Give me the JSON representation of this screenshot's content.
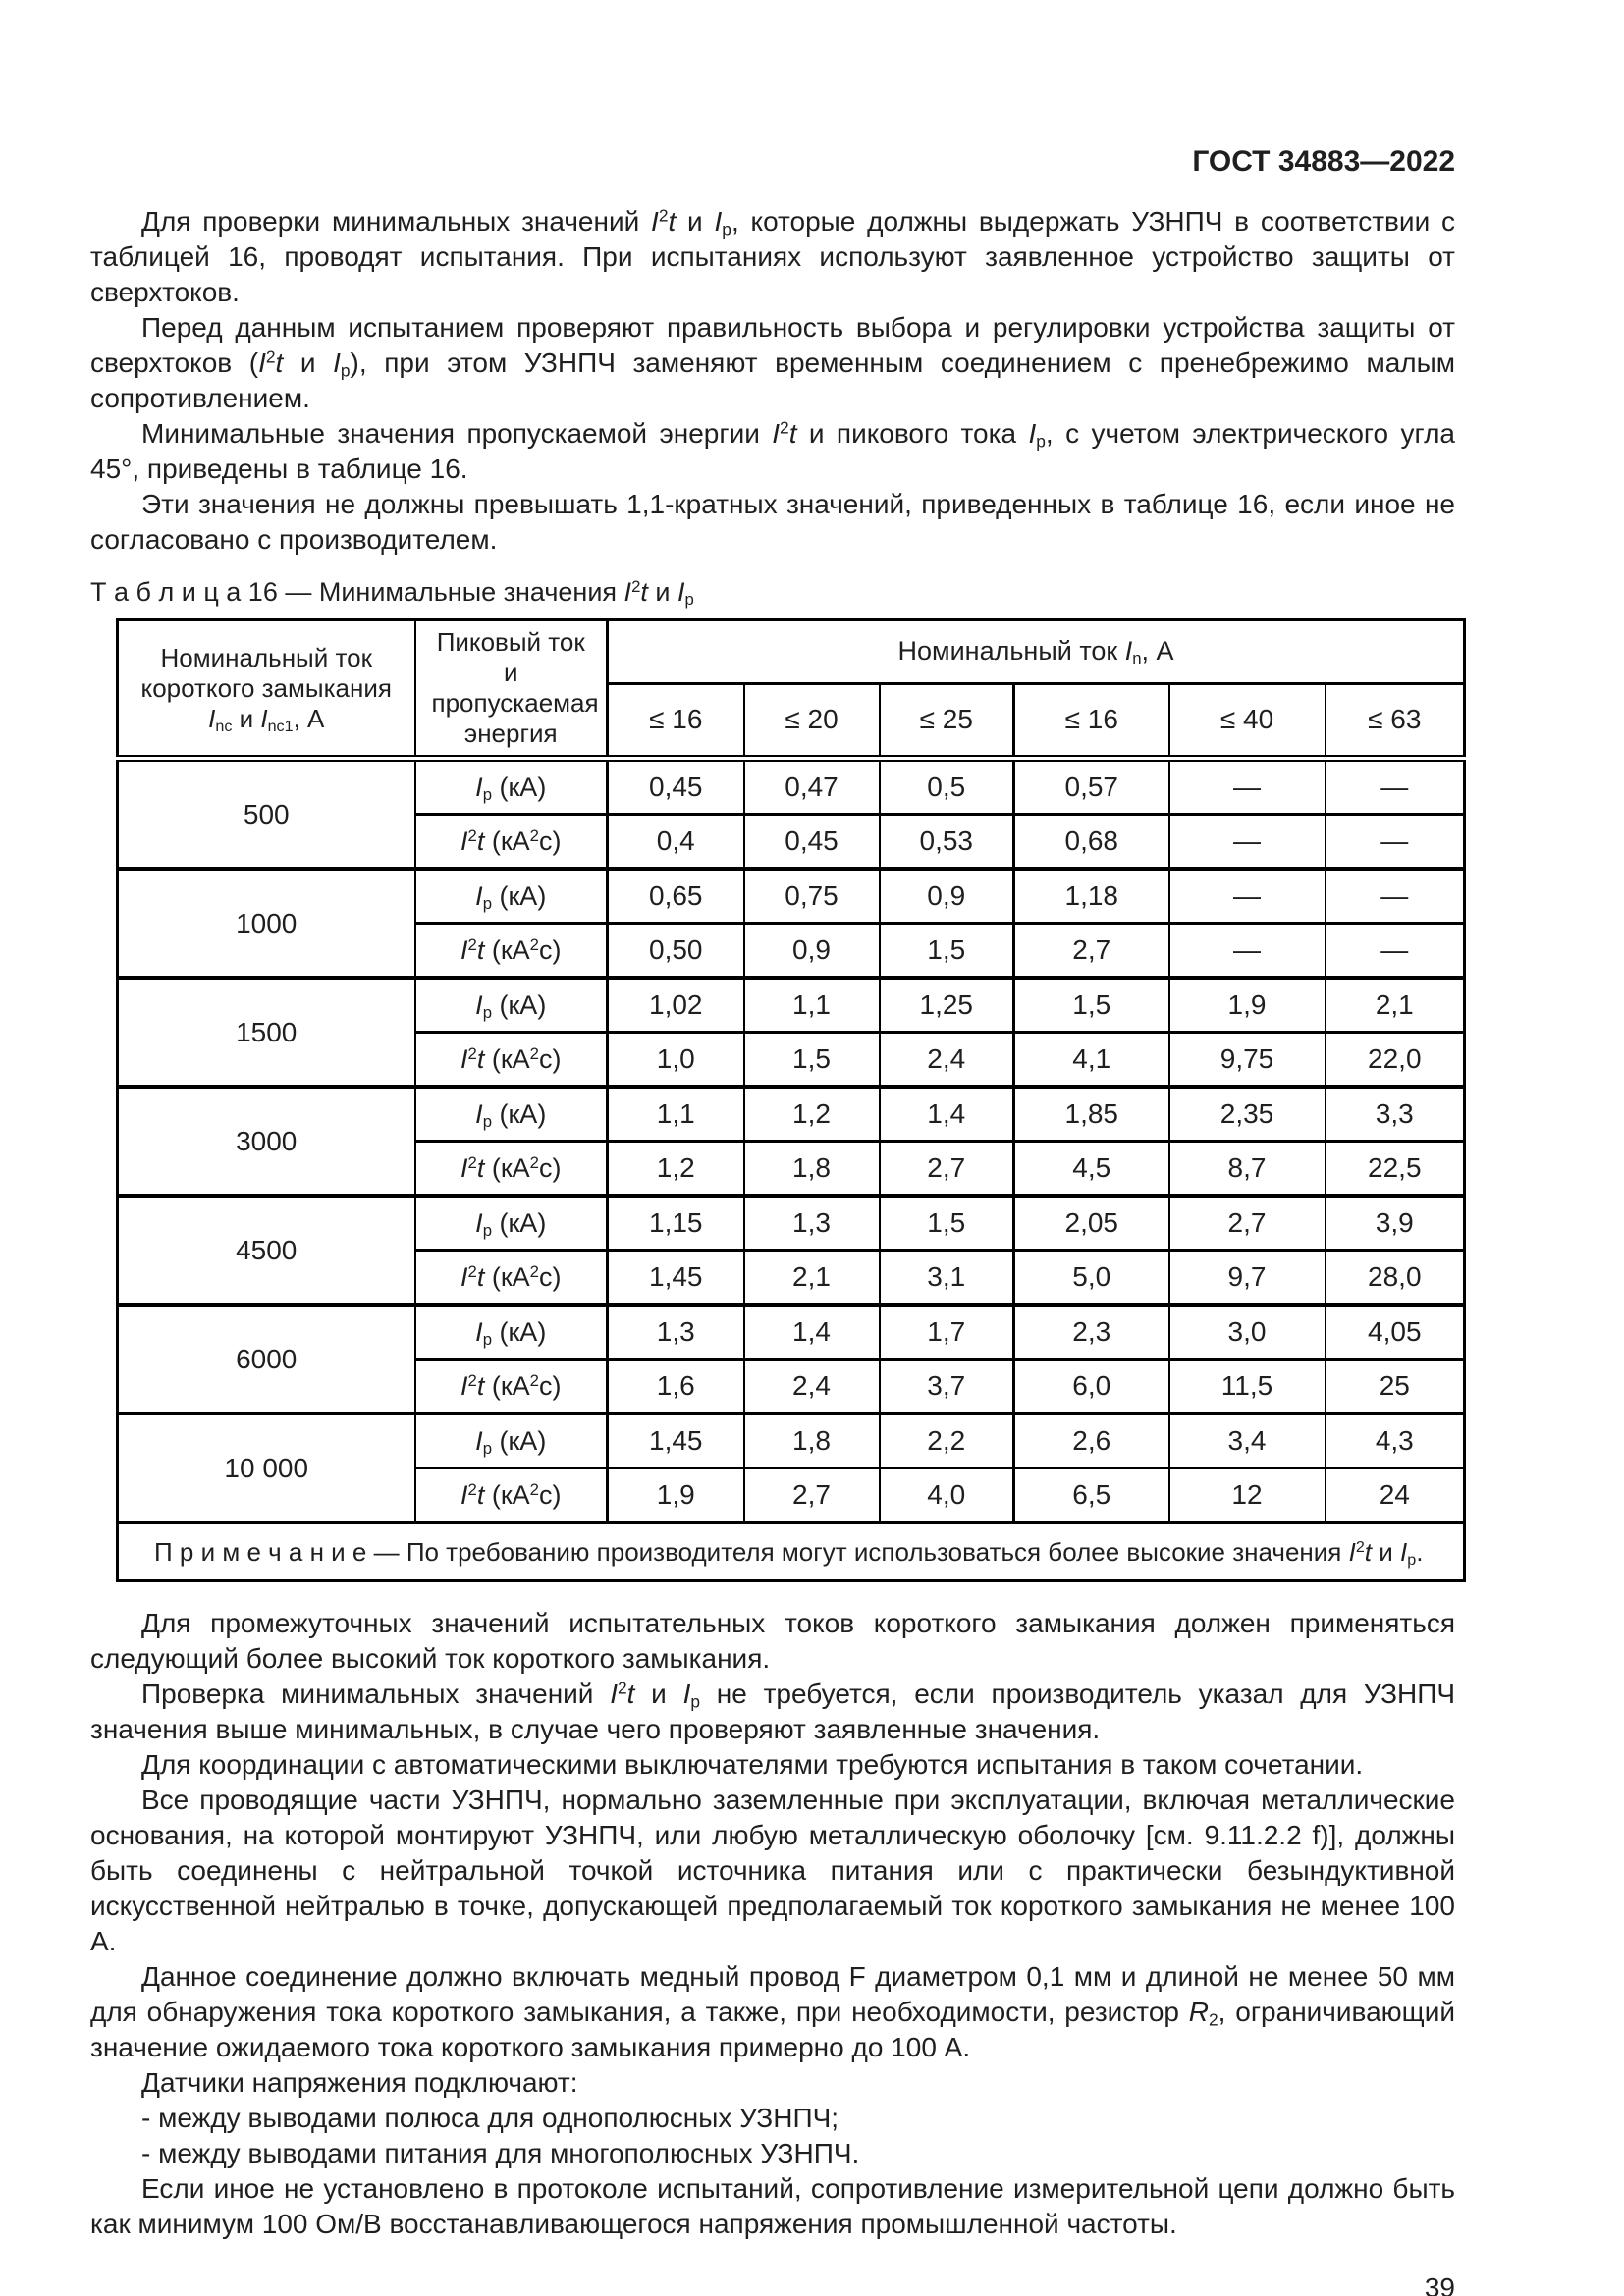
{
  "doc_header": {
    "code": "ГОСТ 34883—2022"
  },
  "intro_paragraphs": [
    {
      "html": "Для проверки минимальных значений <i>I</i><sup>2</sup><i>t</i> и <i>I</i><sub>p</sub>, которые должны выдержать УЗНПЧ в соответствии с таблицей 16, проводят испытания. При испытаниях используют заявленное устройство защиты от сверхтоков."
    },
    {
      "html": "Перед данным испытанием проверяют правильность выбора и регулировки устройства защиты от сверхтоков (<i>I</i><sup>2</sup><i>t</i> и <i>I</i><sub>p</sub>), при этом УЗНПЧ заменяют временным соединением с пренебрежимо малым сопротивлением."
    },
    {
      "html": "Минимальные значения пропускаемой энергии <i>I</i><sup>2</sup><i>t</i> и пикового тока <i>I</i><sub>p</sub>, с учетом электрического угла 45°, приведены в таблице 16."
    },
    {
      "html": "Эти значения не должны превышать 1,1-кратных значений, приведенных в таблице 16, если иное не согласовано с производителем."
    }
  ],
  "table16": {
    "caption_html": "Т а б л и ц а  16 — Минимальные значения <i>I</i><sup>2</sup><i>t</i> и <i>I</i><sub>p</sub>",
    "headers": {
      "col1_html": "Номинальный ток короткого замыкания <i>I</i><sub>nc</sub> и <i>I</i><sub>nc1</sub>, А",
      "col2": "Пиковый ток и пропускаемая энергия",
      "group_html": "Номинальный ток <i>I</i><sub>n</sub>, А",
      "subcols": [
        "≤ 16",
        "≤ 20",
        "≤ 25",
        "≤ 16",
        "≤ 40",
        "≤ 63"
      ]
    },
    "row_labels": {
      "ip_html": "<i>I</i><sub>p</sub> (кА)",
      "i2t_html": "<i>I</i><sup>2</sup><i>t</i> (кА<sup>2</sup>с)"
    },
    "groups": [
      {
        "current": "500",
        "ip": [
          "0,45",
          "0,47",
          "0,5",
          "0,57",
          "—",
          "—"
        ],
        "i2t": [
          "0,4",
          "0,45",
          "0,53",
          "0,68",
          "—",
          "—"
        ]
      },
      {
        "current": "1000",
        "ip": [
          "0,65",
          "0,75",
          "0,9",
          "1,18",
          "—",
          "—"
        ],
        "i2t": [
          "0,50",
          "0,9",
          "1,5",
          "2,7",
          "—",
          "—"
        ]
      },
      {
        "current": "1500",
        "ip": [
          "1,02",
          "1,1",
          "1,25",
          "1,5",
          "1,9",
          "2,1"
        ],
        "i2t": [
          "1,0",
          "1,5",
          "2,4",
          "4,1",
          "9,75",
          "22,0"
        ]
      },
      {
        "current": "3000",
        "ip": [
          "1,1",
          "1,2",
          "1,4",
          "1,85",
          "2,35",
          "3,3"
        ],
        "i2t": [
          "1,2",
          "1,8",
          "2,7",
          "4,5",
          "8,7",
          "22,5"
        ]
      },
      {
        "current": "4500",
        "ip": [
          "1,15",
          "1,3",
          "1,5",
          "2,05",
          "2,7",
          "3,9"
        ],
        "i2t": [
          "1,45",
          "2,1",
          "3,1",
          "5,0",
          "9,7",
          "28,0"
        ]
      },
      {
        "current": "6000",
        "ip": [
          "1,3",
          "1,4",
          "1,7",
          "2,3",
          "3,0",
          "4,05"
        ],
        "i2t": [
          "1,6",
          "2,4",
          "3,7",
          "6,0",
          "11,5",
          "25"
        ]
      },
      {
        "current": "10 000",
        "ip": [
          "1,45",
          "1,8",
          "2,2",
          "2,6",
          "3,4",
          "4,3"
        ],
        "i2t": [
          "1,9",
          "2,7",
          "4,0",
          "6,5",
          "12",
          "24"
        ]
      }
    ],
    "note_html": "П р и м е ч а н и е  — По требованию производителя могут использоваться более высокие значения <i>I</i><sup>2</sup><i>t</i> и <i>I</i><sub>p</sub>."
  },
  "body_paragraphs": [
    {
      "html": "Для промежуточных значений испытательных токов короткого замыкания должен применяться следующий более высокий ток короткого замыкания."
    },
    {
      "html": "Проверка минимальных значений <i>I</i><sup>2</sup><i>t</i> и <i>I</i><sub>p</sub> не требуется, если производитель указал для УЗНПЧ значения выше минимальных, в случае чего проверяют заявленные значения."
    },
    {
      "html": "Для координации с автоматическими выключателями требуются испытания в таком сочетании."
    },
    {
      "html": "Все проводящие части УЗНПЧ, нормально заземленные при эксплуатации, включая металлические основания, на которой монтируют УЗНПЧ, или любую металлическую оболочку [см. 9.11.2.2 f)], должны быть соединены с нейтральной точкой источника питания или с практически безындуктивной искусственной нейтралью в точке, допускающей предполагаемый ток короткого замыкания не менее 100 А."
    },
    {
      "html": "Данное соединение должно включать медный провод F диаметром 0,1 мм и длиной не менее 50 мм для обнаружения тока короткого замыкания, а также, при необходимости, резистор <i>R</i><sub>2</sub>, ограничивающий значение ожидаемого тока короткого замыкания примерно до 100 А."
    },
    {
      "html": "Датчики напряжения подключают:"
    },
    {
      "html": "- между выводами полюса для однополюсных УЗНПЧ;"
    },
    {
      "html": "- между выводами питания для многополюсных УЗНПЧ."
    },
    {
      "html": "Если иное не установлено в протоколе испытаний, сопротивление измерительной цепи должно быть как минимум 100 Ом/В восстанавливающегося напряжения промышленной частоты."
    }
  ],
  "page_number": "39"
}
